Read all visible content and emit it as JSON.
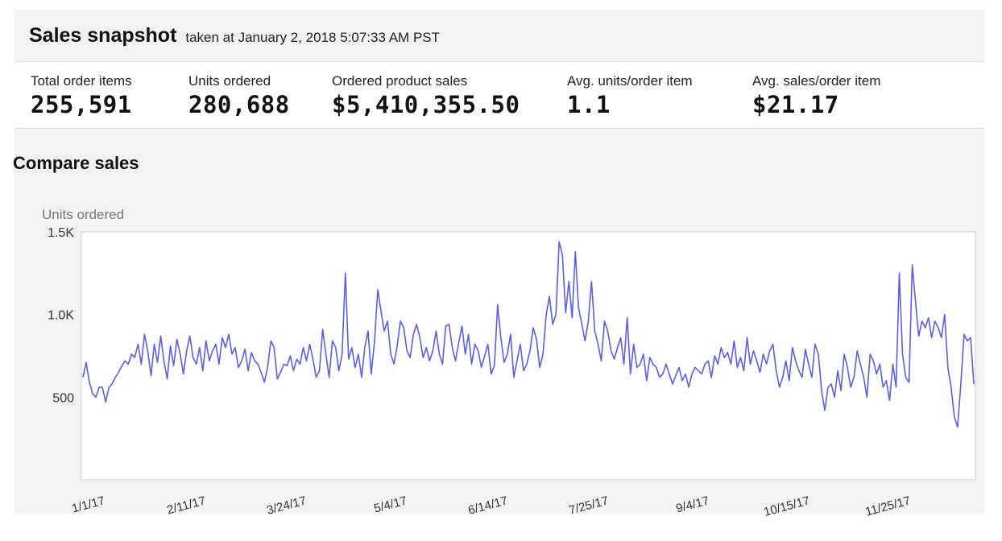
{
  "snapshot": {
    "title": "Sales snapshot",
    "subtitle": "taken at January 2, 2018 5:07:33 AM PST"
  },
  "metrics": [
    {
      "label": "Total order items",
      "value": "255,591"
    },
    {
      "label": "Units ordered",
      "value": "280,688"
    },
    {
      "label": "Ordered product sales",
      "value": "$5,410,355.50"
    },
    {
      "label": "Avg. units/order item",
      "value": "1.1"
    },
    {
      "label": "Avg. sales/order item",
      "value": "$21.17"
    }
  ],
  "compare": {
    "title": "Compare sales"
  },
  "colors": {
    "line": "#5a5fe6",
    "panel": "#f3f3f3",
    "plot_border": "#cfcfcf"
  },
  "chart_data": {
    "type": "line",
    "ylabel": "Units ordered",
    "ylim": [
      0,
      1500
    ],
    "yticks": [
      {
        "value": 500,
        "label": "500"
      },
      {
        "value": 1000,
        "label": "1.0K"
      },
      {
        "value": 1500,
        "label": "1.5K"
      }
    ],
    "xticks": [
      "1/1/17",
      "2/11/17",
      "3/24/17",
      "5/4/17",
      "6/14/17",
      "7/25/17",
      "9/4/17",
      "10/15/17",
      "11/25/17"
    ],
    "x_start": "1/1/17",
    "x_end": "12/31/17",
    "grid": false,
    "legend": "none",
    "series": [
      {
        "values": [
          620,
          710,
          590,
          520,
          500,
          560,
          560,
          470,
          560,
          580,
          620,
          650,
          690,
          720,
          700,
          760,
          740,
          820,
          700,
          880,
          780,
          630,
          820,
          710,
          870,
          720,
          610,
          810,
          690,
          850,
          760,
          640,
          780,
          870,
          740,
          700,
          800,
          660,
          840,
          720,
          780,
          820,
          700,
          860,
          800,
          880,
          760,
          800,
          680,
          720,
          790,
          660,
          770,
          720,
          700,
          650,
          590,
          680,
          840,
          800,
          610,
          650,
          700,
          690,
          750,
          660,
          730,
          700,
          800,
          720,
          820,
          730,
          620,
          660,
          910,
          760,
          620,
          840,
          800,
          660,
          760,
          1250,
          730,
          800,
          680,
          760,
          620,
          800,
          900,
          640,
          840,
          1150,
          1020,
          900,
          960,
          760,
          700,
          810,
          960,
          920,
          780,
          740,
          880,
          940,
          860,
          740,
          800,
          720,
          780,
          900,
          760,
          700,
          930,
          940,
          800,
          720,
          830,
          930,
          760,
          880,
          700,
          820,
          780,
          680,
          750,
          820,
          640,
          690,
          1060,
          860,
          710,
          760,
          880,
          620,
          720,
          820,
          660,
          700,
          780,
          920,
          850,
          680,
          760,
          1000,
          1110,
          940,
          1000,
          1440,
          1360,
          1010,
          1200,
          980,
          1380,
          1040,
          940,
          840,
          960,
          1200,
          900,
          820,
          720,
          960,
          900,
          780,
          730,
          800,
          860,
          700,
          980,
          640,
          820,
          680,
          700,
          760,
          600,
          740,
          700,
          680,
          620,
          640,
          700,
          640,
          580,
          630,
          680,
          600,
          640,
          560,
          640,
          680,
          660,
          640,
          700,
          720,
          620,
          750,
          700,
          800,
          740,
          770,
          700,
          840,
          680,
          740,
          660,
          860,
          700,
          780,
          720,
          650,
          760,
          700,
          780,
          820,
          660,
          560,
          620,
          720,
          600,
          800,
          720,
          660,
          620,
          790,
          700,
          620,
          820,
          760,
          540,
          420,
          560,
          580,
          500,
          660,
          540,
          760,
          680,
          560,
          620,
          780,
          700,
          620,
          500,
          760,
          720,
          640,
          700,
          560,
          600,
          480,
          700,
          560,
          1250,
          760,
          620,
          590,
          1300,
          1080,
          870,
          960,
          920,
          980,
          860,
          960,
          920,
          860,
          1000,
          680,
          560,
          380,
          320,
          580,
          880,
          840,
          860,
          580
        ]
      }
    ]
  }
}
